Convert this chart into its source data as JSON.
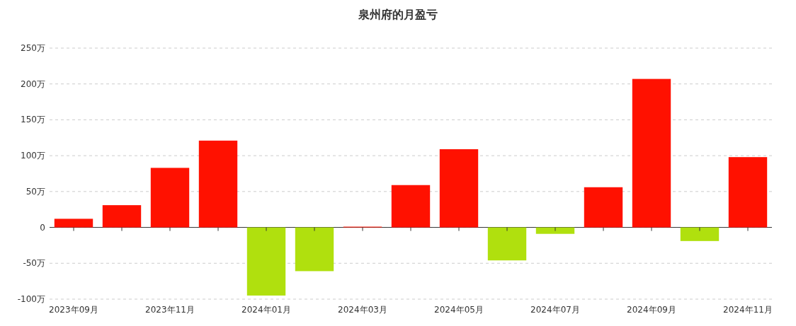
{
  "chart_data": {
    "type": "bar",
    "title": "泉州府的月盈亏",
    "categories": [
      "2023年09月",
      null,
      "2023年11月",
      null,
      "2024年01月",
      null,
      "2024年03月",
      null,
      "2024年05月",
      null,
      "2024年07月",
      null,
      "2024年09月",
      null,
      "2024年11月"
    ],
    "values": [
      12,
      31,
      83,
      121,
      -95,
      -61,
      1,
      59,
      109,
      -46,
      -9,
      56,
      207,
      -19,
      98
    ],
    "colors": [
      "#ff1100",
      "#ff1100",
      "#ff1100",
      "#ff1100",
      "#b0e00e",
      "#b0e00e",
      "#ff1100",
      "#ff1100",
      "#ff1100",
      "#b0e00e",
      "#b0e00e",
      "#ff1100",
      "#ff1100",
      "#b0e00e",
      "#ff1100"
    ],
    "ylim": [
      -100,
      250
    ],
    "yticks": [
      {
        "value": -100,
        "label": "-100万"
      },
      {
        "value": -50,
        "label": "-50万"
      },
      {
        "value": 0,
        "label": "0"
      },
      {
        "value": 50,
        "label": "50万"
      },
      {
        "value": 100,
        "label": "100万"
      },
      {
        "value": 150,
        "label": "150万"
      },
      {
        "value": 200,
        "label": "200万"
      },
      {
        "value": 250,
        "label": "250万"
      }
    ],
    "grid": "y"
  }
}
